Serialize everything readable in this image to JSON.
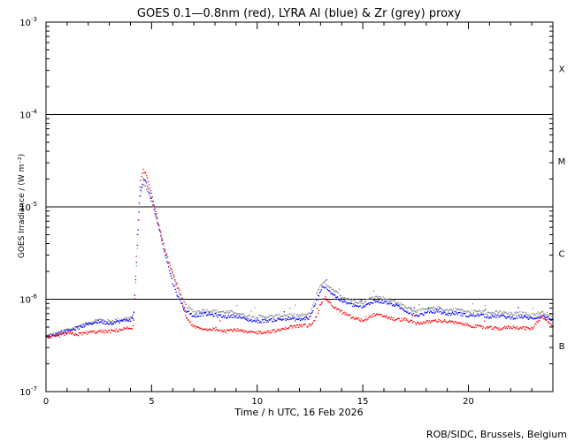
{
  "chart_data": {
    "type": "scatter",
    "title": "GOES 0.1—0.8nm (red), LYRA Al (blue) & Zr (grey) proxy",
    "xlabel": "Time / h UTC, 16 Feb 2026",
    "ylabel": "GOES Irradiance / (W m⁻²)",
    "credit": "ROB/SIDC, Brussels, Belgium",
    "xlim": [
      0,
      24
    ],
    "ylim_log10": [
      -7,
      -3
    ],
    "yscale": "log",
    "x_ticks": [
      {
        "value": 0,
        "label": "0"
      },
      {
        "value": 5,
        "label": "5"
      },
      {
        "value": 10,
        "label": "10"
      },
      {
        "value": 15,
        "label": "15"
      },
      {
        "value": 20,
        "label": "20"
      }
    ],
    "y_ticks": [
      {
        "exp": -3,
        "base": "10",
        "sup": "-3"
      },
      {
        "exp": -4,
        "base": "10",
        "sup": "-4"
      },
      {
        "exp": -5,
        "base": "10",
        "sup": "-5"
      },
      {
        "exp": -6,
        "base": "10",
        "sup": "-6"
      },
      {
        "exp": -7,
        "base": "10",
        "sup": "-7"
      }
    ],
    "flare_class_lines_log10": [
      -4,
      -5,
      -6
    ],
    "flare_classes": [
      {
        "label": "X",
        "log10_center": -3.5
      },
      {
        "label": "M",
        "log10_center": -4.5
      },
      {
        "label": "C",
        "log10_center": -5.5
      },
      {
        "label": "B",
        "log10_center": -6.5
      }
    ],
    "series": [
      {
        "color": "#ff0000",
        "points": [
          [
            0.0,
            -6.42
          ],
          [
            0.5,
            -6.4
          ],
          [
            1.0,
            -6.37
          ],
          [
            1.5,
            -6.38
          ],
          [
            2.0,
            -6.36
          ],
          [
            2.5,
            -6.35
          ],
          [
            3.0,
            -6.35
          ],
          [
            3.5,
            -6.33
          ],
          [
            4.0,
            -6.31
          ],
          [
            4.15,
            -6.3
          ],
          [
            4.3,
            -5.4
          ],
          [
            4.45,
            -4.75
          ],
          [
            4.6,
            -4.61
          ],
          [
            4.75,
            -4.65
          ],
          [
            5.0,
            -4.85
          ],
          [
            5.3,
            -5.15
          ],
          [
            5.6,
            -5.45
          ],
          [
            6.0,
            -5.72
          ],
          [
            6.3,
            -5.9
          ],
          [
            6.6,
            -6.18
          ],
          [
            7.0,
            -6.3
          ],
          [
            7.5,
            -6.33
          ],
          [
            8.0,
            -6.32
          ],
          [
            8.5,
            -6.34
          ],
          [
            9.0,
            -6.33
          ],
          [
            9.5,
            -6.36
          ],
          [
            10.0,
            -6.36
          ],
          [
            10.5,
            -6.35
          ],
          [
            11.0,
            -6.34
          ],
          [
            11.5,
            -6.3
          ],
          [
            12.0,
            -6.29
          ],
          [
            12.5,
            -6.28
          ],
          [
            12.8,
            -6.2
          ],
          [
            13.0,
            -6.05
          ],
          [
            13.2,
            -5.98
          ],
          [
            13.5,
            -6.06
          ],
          [
            14.0,
            -6.14
          ],
          [
            14.5,
            -6.2
          ],
          [
            15.0,
            -6.23
          ],
          [
            15.5,
            -6.17
          ],
          [
            16.0,
            -6.18
          ],
          [
            16.5,
            -6.22
          ],
          [
            17.0,
            -6.22
          ],
          [
            17.5,
            -6.26
          ],
          [
            18.0,
            -6.25
          ],
          [
            18.5,
            -6.23
          ],
          [
            19.0,
            -6.24
          ],
          [
            19.5,
            -6.26
          ],
          [
            20.0,
            -6.28
          ],
          [
            20.5,
            -6.3
          ],
          [
            21.0,
            -6.31
          ],
          [
            21.5,
            -6.32
          ],
          [
            22.0,
            -6.3
          ],
          [
            22.5,
            -6.31
          ],
          [
            23.0,
            -6.32
          ],
          [
            23.5,
            -6.18
          ],
          [
            24.0,
            -6.3
          ]
        ]
      },
      {
        "color": "#0000ff",
        "points": [
          [
            0.0,
            -6.41
          ],
          [
            0.5,
            -6.38
          ],
          [
            1.0,
            -6.34
          ],
          [
            1.5,
            -6.31
          ],
          [
            2.0,
            -6.27
          ],
          [
            2.5,
            -6.24
          ],
          [
            3.0,
            -6.26
          ],
          [
            3.5,
            -6.24
          ],
          [
            4.0,
            -6.22
          ],
          [
            4.15,
            -6.2
          ],
          [
            4.3,
            -5.5
          ],
          [
            4.45,
            -4.85
          ],
          [
            4.6,
            -4.7
          ],
          [
            4.75,
            -4.74
          ],
          [
            5.0,
            -4.92
          ],
          [
            5.3,
            -5.18
          ],
          [
            5.6,
            -5.48
          ],
          [
            6.0,
            -5.82
          ],
          [
            6.3,
            -6.0
          ],
          [
            6.6,
            -6.12
          ],
          [
            7.0,
            -6.18
          ],
          [
            7.5,
            -6.16
          ],
          [
            8.0,
            -6.17
          ],
          [
            8.5,
            -6.19
          ],
          [
            9.0,
            -6.18
          ],
          [
            9.5,
            -6.22
          ],
          [
            10.0,
            -6.24
          ],
          [
            10.5,
            -6.23
          ],
          [
            11.0,
            -6.22
          ],
          [
            11.5,
            -6.21
          ],
          [
            12.0,
            -6.22
          ],
          [
            12.5,
            -6.2
          ],
          [
            12.8,
            -6.02
          ],
          [
            13.0,
            -5.9
          ],
          [
            13.2,
            -5.86
          ],
          [
            13.5,
            -5.93
          ],
          [
            14.0,
            -6.02
          ],
          [
            14.5,
            -6.06
          ],
          [
            15.0,
            -6.09
          ],
          [
            15.5,
            -6.02
          ],
          [
            16.0,
            -6.03
          ],
          [
            16.5,
            -6.06
          ],
          [
            17.0,
            -6.12
          ],
          [
            17.5,
            -6.18
          ],
          [
            18.0,
            -6.15
          ],
          [
            18.5,
            -6.13
          ],
          [
            19.0,
            -6.16
          ],
          [
            19.5,
            -6.15
          ],
          [
            20.0,
            -6.18
          ],
          [
            20.5,
            -6.17
          ],
          [
            21.0,
            -6.19
          ],
          [
            21.5,
            -6.18
          ],
          [
            22.0,
            -6.2
          ],
          [
            22.5,
            -6.19
          ],
          [
            23.0,
            -6.21
          ],
          [
            23.5,
            -6.18
          ],
          [
            24.0,
            -6.22
          ]
        ]
      },
      {
        "color": "#8c8c8c",
        "points": [
          [
            0.0,
            -6.4
          ],
          [
            0.5,
            -6.37
          ],
          [
            1.0,
            -6.33
          ],
          [
            1.5,
            -6.3
          ],
          [
            2.0,
            -6.26
          ],
          [
            2.5,
            -6.22
          ],
          [
            3.0,
            -6.24
          ],
          [
            3.5,
            -6.22
          ],
          [
            4.0,
            -6.2
          ],
          [
            4.15,
            -6.18
          ],
          [
            4.3,
            -5.55
          ],
          [
            4.45,
            -4.92
          ],
          [
            4.6,
            -4.76
          ],
          [
            4.75,
            -4.79
          ],
          [
            5.0,
            -4.95
          ],
          [
            5.3,
            -5.17
          ],
          [
            5.6,
            -5.43
          ],
          [
            6.0,
            -5.74
          ],
          [
            6.3,
            -5.93
          ],
          [
            6.6,
            -6.06
          ],
          [
            7.0,
            -6.14
          ],
          [
            7.5,
            -6.12
          ],
          [
            8.0,
            -6.13
          ],
          [
            8.5,
            -6.14
          ],
          [
            9.0,
            -6.14
          ],
          [
            9.5,
            -6.18
          ],
          [
            10.0,
            -6.19
          ],
          [
            10.5,
            -6.19
          ],
          [
            11.0,
            -6.18
          ],
          [
            11.5,
            -6.17
          ],
          [
            12.0,
            -6.18
          ],
          [
            12.5,
            -6.16
          ],
          [
            12.8,
            -5.95
          ],
          [
            13.0,
            -5.84
          ],
          [
            13.2,
            -5.82
          ],
          [
            13.5,
            -5.88
          ],
          [
            14.0,
            -5.97
          ],
          [
            14.5,
            -6.01
          ],
          [
            15.0,
            -6.04
          ],
          [
            15.5,
            -5.97
          ],
          [
            16.0,
            -5.99
          ],
          [
            16.5,
            -6.02
          ],
          [
            17.0,
            -6.08
          ],
          [
            17.5,
            -6.13
          ],
          [
            18.0,
            -6.11
          ],
          [
            18.5,
            -6.09
          ],
          [
            19.0,
            -6.12
          ],
          [
            19.5,
            -6.11
          ],
          [
            20.0,
            -6.14
          ],
          [
            20.5,
            -6.13
          ],
          [
            21.0,
            -6.15
          ],
          [
            21.5,
            -6.14
          ],
          [
            22.0,
            -6.16
          ],
          [
            22.5,
            -6.15
          ],
          [
            23.0,
            -6.17
          ],
          [
            23.5,
            -6.14
          ],
          [
            24.0,
            -6.18
          ]
        ]
      }
    ]
  }
}
